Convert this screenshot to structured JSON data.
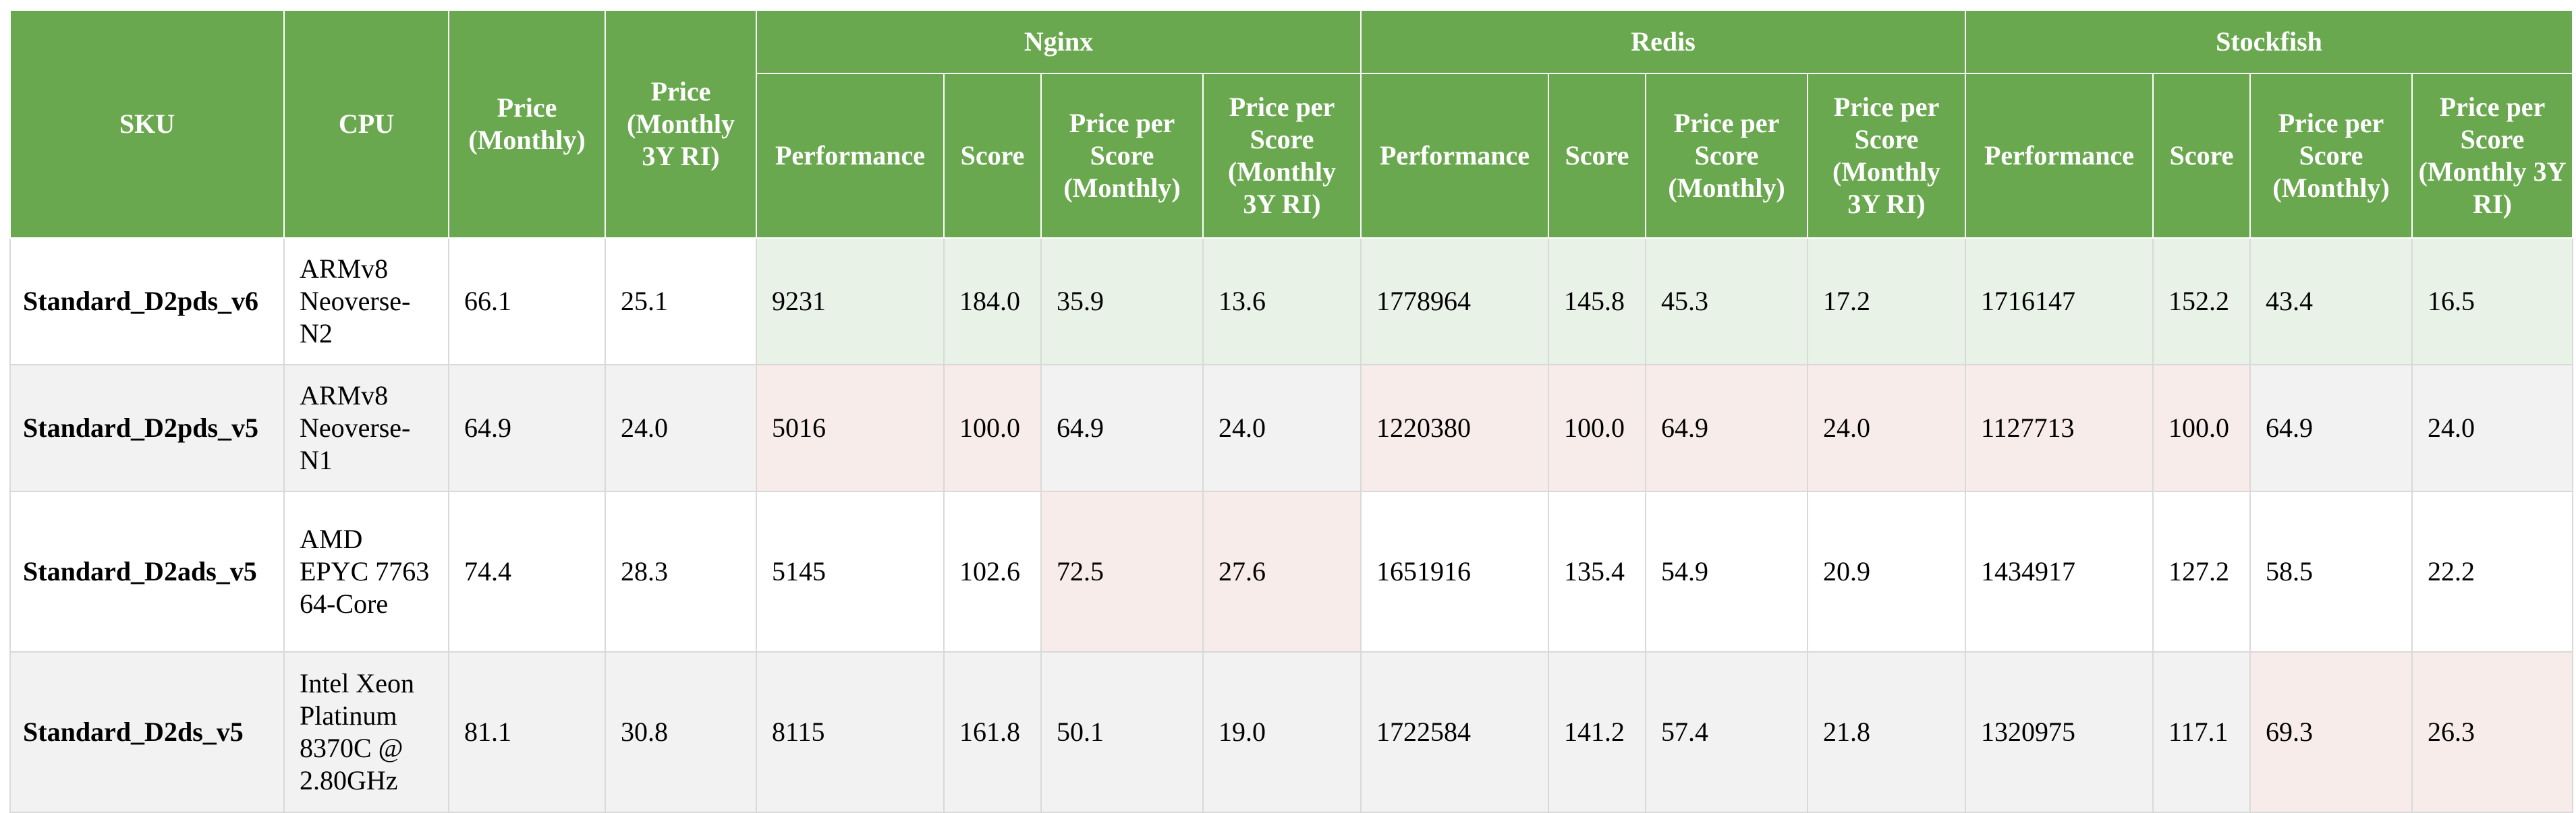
{
  "headers": {
    "sku": "SKU",
    "cpu": "CPU",
    "price_monthly": "Price (Monthly)",
    "price_ri": "Price (Monthly 3Y RI)",
    "groups": [
      "Nginx",
      "Redis",
      "Stockfish"
    ],
    "sub": [
      "Performance",
      "Score",
      "Price per Score (Monthly)",
      "Price per Score (Monthly 3Y RI)"
    ]
  },
  "rows": [
    {
      "sku": "Standard_D2pds_v6",
      "cpu": "ARMv8 Neoverse-N2",
      "price_monthly": "66.1",
      "price_ri": "25.1",
      "nginx": [
        "9231",
        "184.0",
        "35.9",
        "13.6"
      ],
      "redis": [
        "1778964",
        "145.8",
        "45.3",
        "17.2"
      ],
      "stockfish": [
        "1716147",
        "152.2",
        "43.4",
        "16.5"
      ]
    },
    {
      "sku": "Standard_D2pds_v5",
      "cpu": "ARMv8 Neoverse-N1",
      "price_monthly": "64.9",
      "price_ri": "24.0",
      "nginx": [
        "5016",
        "100.0",
        "64.9",
        "24.0"
      ],
      "redis": [
        "1220380",
        "100.0",
        "64.9",
        "24.0"
      ],
      "stockfish": [
        "1127713",
        "100.0",
        "64.9",
        "24.0"
      ]
    },
    {
      "sku": "Standard_D2ads_v5",
      "cpu": "AMD EPYC 7763 64-Core",
      "price_monthly": "74.4",
      "price_ri": "28.3",
      "nginx": [
        "5145",
        "102.6",
        "72.5",
        "27.6"
      ],
      "redis": [
        "1651916",
        "135.4",
        "54.9",
        "20.9"
      ],
      "stockfish": [
        "1434917",
        "127.2",
        "58.5",
        "22.2"
      ]
    },
    {
      "sku": "Standard_D2ds_v5",
      "cpu": "Intel Xeon Platinum 8370C @ 2.80GHz",
      "price_monthly": "81.1",
      "price_ri": "30.8",
      "nginx": [
        "8115",
        "161.8",
        "50.1",
        "19.0"
      ],
      "redis": [
        "1722584",
        "141.2",
        "57.4",
        "21.8"
      ],
      "stockfish": [
        "1320975",
        "117.1",
        "69.3",
        "26.3"
      ]
    }
  ],
  "colors": {
    "header_bg": "#6aa84f",
    "header_text": "#ffffff",
    "best_highlight": "#e8f2e6",
    "worst_highlight": "#f8ecea",
    "alt_row": "#f2f2f2",
    "grid": "#d9d9d9"
  }
}
